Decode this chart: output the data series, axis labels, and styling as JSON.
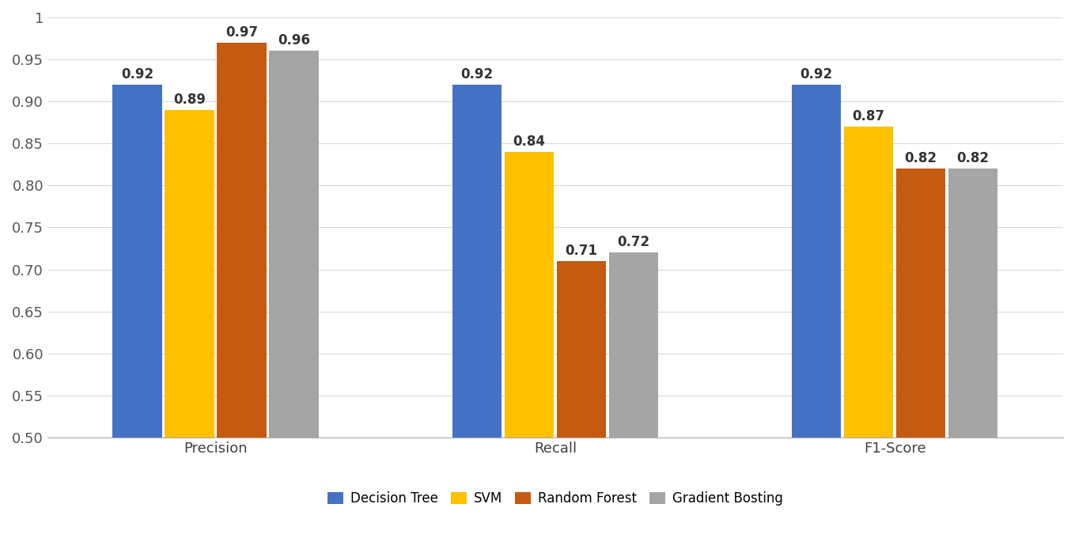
{
  "categories": [
    "Precision",
    "Recall",
    "F1-Score"
  ],
  "series": {
    "Decision Tree": [
      0.92,
      0.92,
      0.92
    ],
    "SVM": [
      0.89,
      0.84,
      0.87
    ],
    "Random Forest": [
      0.97,
      0.71,
      0.82
    ],
    "Gradient Bosting": [
      0.96,
      0.72,
      0.82
    ]
  },
  "colors": {
    "Decision Tree": "#4472C4",
    "SVM": "#FFC000",
    "Random Forest": "#C55A11",
    "Gradient Bosting": "#A5A5A5"
  },
  "ylim": [
    0.5,
    1.0
  ],
  "yticks": [
    0.5,
    0.55,
    0.6,
    0.65,
    0.7,
    0.75,
    0.8,
    0.85,
    0.9,
    0.95,
    1.0
  ],
  "bar_width": 0.19,
  "group_positions": [
    0.38,
    1.38,
    2.38
  ],
  "label_fontsize": 13,
  "tick_fontsize": 13,
  "legend_fontsize": 12,
  "value_fontsize": 12,
  "background_color": "#FFFFFF",
  "grid_color": "#D9D9D9"
}
